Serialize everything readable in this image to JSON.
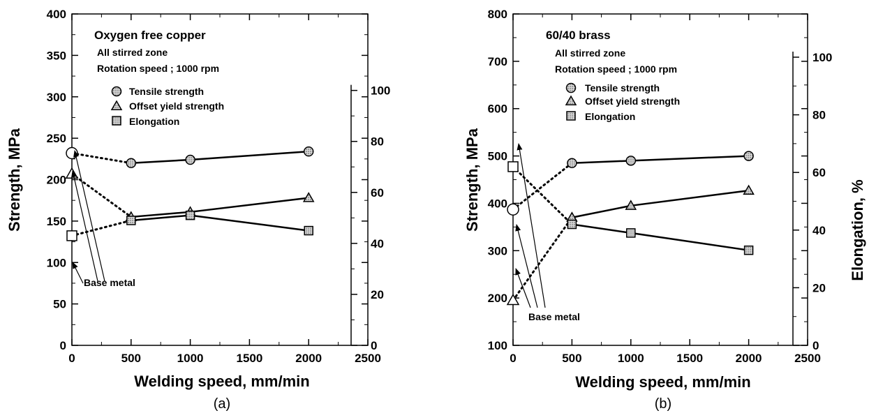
{
  "chart_data": [
    {
      "type": "line",
      "subfigure_label": "(a)",
      "title": "Oxygen free copper",
      "notes": [
        "All stirred zone",
        "Rotation speed ; 1000 rpm"
      ],
      "xlabel": "Welding speed, mm/min",
      "ylabel": "Strength, MPa",
      "y2label": "",
      "xlim": [
        0,
        2500
      ],
      "ylim": [
        0,
        400
      ],
      "y2lim": [
        0,
        130
      ],
      "x_ticks": [
        0,
        500,
        1000,
        1500,
        2000,
        2500
      ],
      "y_ticks": [
        0,
        50,
        100,
        150,
        200,
        250,
        300,
        350,
        400
      ],
      "y2_ticks": [
        0,
        20,
        40,
        60,
        80,
        100
      ],
      "grid": false,
      "legend_position": "top-left",
      "legend": [
        "Tensile strength",
        "Offset yield strength",
        "Elongation"
      ],
      "annotation": "Base metal",
      "series": [
        {
          "name": "Tensile strength",
          "marker": "circle",
          "axis": "left",
          "base": {
            "x": 0,
            "y": 232
          },
          "x": [
            500,
            1000,
            2000
          ],
          "y": [
            220,
            224,
            234
          ]
        },
        {
          "name": "Offset yield strength",
          "marker": "triangle",
          "axis": "left",
          "base": {
            "x": 0,
            "y": 207
          },
          "x": [
            500,
            1000,
            2000
          ],
          "y": [
            155,
            161,
            178
          ]
        },
        {
          "name": "Elongation",
          "marker": "square",
          "axis": "right",
          "base": {
            "x": 0,
            "y": 43
          },
          "x": [
            500,
            1000,
            2000
          ],
          "y": [
            49,
            51,
            45
          ]
        }
      ]
    },
    {
      "type": "line",
      "subfigure_label": "(b)",
      "title": "60/40 brass",
      "notes": [
        "All stirred zone",
        "Rotation speed ; 1000 rpm"
      ],
      "xlabel": "Welding speed, mm/min",
      "ylabel": "Strength, MPa",
      "y2label": "Elongation, %",
      "xlim": [
        0,
        2500
      ],
      "ylim": [
        100,
        800
      ],
      "y2lim": [
        0,
        115
      ],
      "x_ticks": [
        0,
        500,
        1000,
        1500,
        2000,
        2500
      ],
      "y_ticks": [
        100,
        200,
        300,
        400,
        500,
        600,
        700,
        800
      ],
      "y2_ticks": [
        0,
        20,
        40,
        60,
        80,
        100
      ],
      "grid": false,
      "legend_position": "top-left",
      "legend": [
        "Tensile strength",
        "Offset yield strength",
        "Elongation"
      ],
      "annotation": "Base metal",
      "series": [
        {
          "name": "Tensile strength",
          "marker": "circle",
          "axis": "left",
          "base": {
            "x": 0,
            "y": 387
          },
          "x": [
            500,
            1000,
            2000
          ],
          "y": [
            485,
            490,
            500
          ]
        },
        {
          "name": "Offset yield strength",
          "marker": "triangle",
          "axis": "left",
          "base": {
            "x": 0,
            "y": 195
          },
          "x": [
            500,
            1000,
            2000
          ],
          "y": [
            370,
            395,
            427
          ]
        },
        {
          "name": "Elongation",
          "marker": "square",
          "axis": "right",
          "base": {
            "x": 0,
            "y": 62
          },
          "x": [
            500,
            1000,
            2000
          ],
          "y": [
            42,
            39,
            33
          ]
        }
      ]
    }
  ]
}
